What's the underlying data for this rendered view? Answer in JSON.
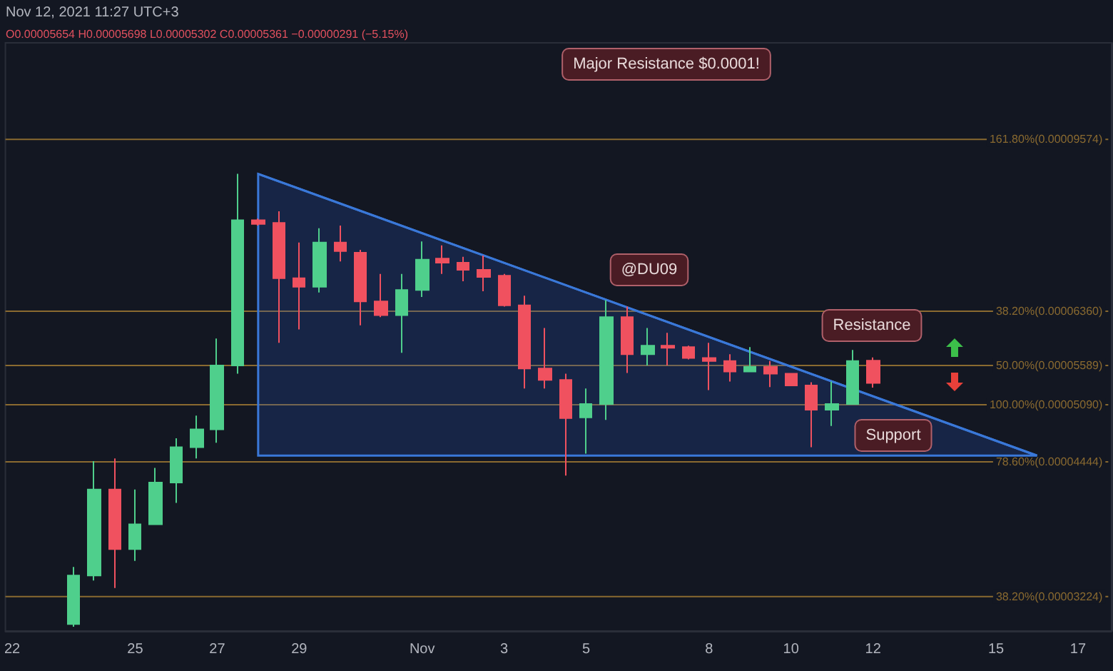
{
  "chart_data": {
    "type": "candlestick",
    "x": [
      "2021-10-23T12:00",
      "2021-10-24",
      "2021-10-24T12:00",
      "2021-10-25",
      "2021-10-25T12:00",
      "2021-10-26",
      "2021-10-26T12:00",
      "2021-10-27",
      "2021-10-27T12:00",
      "2021-10-28",
      "2021-10-28T12:00",
      "2021-10-29",
      "2021-10-29T12:00",
      "2021-10-30",
      "2021-10-30T12:00",
      "2021-10-31",
      "2021-10-31T12:00",
      "2021-11-01",
      "2021-11-01T12:00",
      "2021-11-02",
      "2021-11-02T12:00",
      "2021-11-03",
      "2021-11-03T12:00",
      "2021-11-04",
      "2021-11-04T12:00",
      "2021-11-05",
      "2021-11-05T12:00",
      "2021-11-06",
      "2021-11-06T12:00",
      "2021-11-07",
      "2021-11-07T12:00",
      "2021-11-08",
      "2021-11-08T12:00",
      "2021-11-09",
      "2021-11-09T12:00",
      "2021-11-10",
      "2021-11-10T12:00",
      "2021-11-11",
      "2021-11-11T12:00",
      "2021-11-12"
    ],
    "ohlc": [
      [
        3.02e-05,
        3.46e-05,
        3e-05,
        3.39e-05
      ],
      [
        3.39e-05,
        4.45e-05,
        3.35e-05,
        4.16e-05
      ],
      [
        4.16e-05,
        4.48e-05,
        3.29e-05,
        3.61e-05
      ],
      [
        3.61e-05,
        4.16e-05,
        3.51e-05,
        3.83e-05
      ],
      [
        3.83e-05,
        4.38e-05,
        3.83e-05,
        4.23e-05
      ],
      [
        4.23e-05,
        4.7e-05,
        4.03e-05,
        4.6e-05
      ],
      [
        4.6e-05,
        4.96e-05,
        4.48e-05,
        4.8e-05
      ],
      [
        4.8e-05,
        5.96e-05,
        4.65e-05,
        5.59e-05
      ],
      [
        5.59e-05,
        8.82e-05,
        5.48e-05,
        7.9e-05
      ],
      [
        7.9e-05,
        7.93e-05,
        7.8e-05,
        7.83e-05
      ],
      [
        7.85e-05,
        8.07e-05,
        5.9e-05,
        6.88e-05
      ],
      [
        6.88e-05,
        7.49e-05,
        6.09e-05,
        6.74e-05
      ],
      [
        6.74e-05,
        7.75e-05,
        6.65e-05,
        7.49e-05
      ],
      [
        7.49e-05,
        7.8e-05,
        7.16e-05,
        7.34e-05
      ],
      [
        7.31e-05,
        7.36e-05,
        6.15e-05,
        6.51e-05
      ],
      [
        6.51e-05,
        6.95e-05,
        6.27e-05,
        6.3e-05
      ],
      [
        6.3e-05,
        6.95e-05,
        5.76e-05,
        6.69e-05
      ],
      [
        6.69e-05,
        7.51e-05,
        6.58e-05,
        7.19e-05
      ],
      [
        7.21e-05,
        7.44e-05,
        6.95e-05,
        7.14e-05
      ],
      [
        7.14e-05,
        7.24e-05,
        6.83e-05,
        7.02e-05
      ],
      [
        7.02e-05,
        7.26e-05,
        6.67e-05,
        6.9e-05
      ],
      [
        6.92e-05,
        6.95e-05,
        6.43e-05,
        6.45e-05
      ],
      [
        6.45e-05,
        6.6e-05,
        5.29e-05,
        5.55e-05
      ],
      [
        5.55e-05,
        6.11e-05,
        5.29e-05,
        5.4e-05
      ],
      [
        5.4e-05,
        5.48e-05,
        4.3e-05,
        4.93e-05
      ],
      [
        4.94e-05,
        5.29e-05,
        4.53e-05,
        5.1e-05
      ],
      [
        5.1e-05,
        6.53e-05,
        4.91e-05,
        6.27e-05
      ],
      [
        6.27e-05,
        6.43e-05,
        5.49e-05,
        5.74e-05
      ],
      [
        5.74e-05,
        6.11e-05,
        5.59e-05,
        5.86e-05
      ],
      [
        5.86e-05,
        6.04e-05,
        5.59e-05,
        5.83e-05
      ],
      [
        5.84e-05,
        5.86e-05,
        5.67e-05,
        5.69e-05
      ],
      [
        5.69e-05,
        5.9e-05,
        5.27e-05,
        5.65e-05
      ],
      [
        5.65e-05,
        5.74e-05,
        5.38e-05,
        5.51e-05
      ],
      [
        5.51e-05,
        5.84e-05,
        5.51e-05,
        5.57e-05
      ],
      [
        5.57e-05,
        5.65e-05,
        5.31e-05,
        5.48e-05
      ],
      [
        5.48e-05,
        5.49e-05,
        5.33e-05,
        5.33e-05
      ],
      [
        5.33e-05,
        5.37e-05,
        4.6e-05,
        5.03e-05
      ],
      [
        5.03e-05,
        5.38e-05,
        4.84e-05,
        5.1e-05
      ],
      [
        5.1e-05,
        5.8e-05,
        5.1e-05,
        5.65e-05
      ],
      [
        5.654e-05,
        5.698e-05,
        5.302e-05,
        5.361e-05
      ]
    ],
    "colors": [
      "#4fcf8c",
      "#4fcf8c",
      "#f0515f",
      "#4fcf8c",
      "#4fcf8c",
      "#4fcf8c",
      "#4fcf8c",
      "#4fcf8c",
      "#4fcf8c",
      "#f0515f",
      "#f0515f",
      "#f0515f",
      "#4fcf8c",
      "#f0515f",
      "#f0515f",
      "#f0515f",
      "#4fcf8c",
      "#4fcf8c",
      "#f0515f",
      "#f0515f",
      "#f0515f",
      "#f0515f",
      "#f0515f",
      "#f0515f",
      "#f0515f",
      "#4fcf8c",
      "#4fcf8c",
      "#f0515f",
      "#4fcf8c",
      "#f0515f",
      "#f0515f",
      "#f0515f",
      "#f0515f",
      "#4fcf8c",
      "#f0515f",
      "#f0515f",
      "#f0515f",
      "#4fcf8c",
      "#4fcf8c",
      "#f0515f"
    ],
    "series": [
      {
        "type": "line",
        "color": "#3a78d8",
        "x": [
          "2021-10-28",
          "2021-11-16"
        ],
        "values": [
          8.82e-05,
          4.51e-05
        ],
        "lower": [
          4.51e-05,
          4.51e-05
        ],
        "upper": [
          8.82e-05,
          4.51e-05
        ]
      }
    ],
    "marker": "none",
    "log": true,
    "ylim": [
      2.97e-05,
      0.0001205
    ],
    "xlim": [
      "2021-10-21T20:00",
      "2021-11-17T19:40"
    ],
    "xticks": [
      {
        "value": "2021-10-22",
        "label": "22"
      },
      {
        "value": "2021-10-25",
        "label": "25"
      },
      {
        "value": "2021-10-27",
        "label": "27"
      },
      {
        "value": "2021-10-29",
        "label": "29"
      },
      {
        "value": "2021-11-01",
        "label": "Nov"
      },
      {
        "value": "2021-11-03",
        "label": "3"
      },
      {
        "value": "2021-11-05",
        "label": "5"
      },
      {
        "value": "2021-11-08",
        "label": "8"
      },
      {
        "value": "2021-11-10",
        "label": "10"
      },
      {
        "value": "2021-11-12",
        "label": "12"
      },
      {
        "value": "2021-11-15",
        "label": "15"
      },
      {
        "value": "2021-11-17",
        "label": "17"
      }
    ],
    "tick_labels": "x",
    "grid": false,
    "ref_lines": [
      {
        "axis": "y",
        "value": 9.574e-05,
        "label": "161.80%(0.00009574)",
        "color": "#8a6a30"
      },
      {
        "axis": "y",
        "value": 6.36e-05,
        "label": "38.20%(0.00006360)",
        "color": "#8a6a30"
      },
      {
        "axis": "y",
        "value": 5.589e-05,
        "label": "50.00%(0.00005589)",
        "color": "#8a6a30"
      },
      {
        "axis": "y",
        "value": 5.09e-05,
        "label": "100.00%(0.00005090)",
        "color": "#8a6a30"
      },
      {
        "axis": "y",
        "value": 4.444e-05,
        "label": "78.60%(0.00004444)",
        "color": "#8a6a30"
      },
      {
        "axis": "y",
        "value": 3.224e-05,
        "label": "38.20%(0.00003224)",
        "color": "#8a6a30"
      }
    ],
    "annotations": [
      "Nov 12, 2021 11:27 UTC+3",
      "O0.00005654 H0.00005698 L0.00005302 C0.00005361 −0.00000291 (−5.15%)",
      "Major Resistance $0.0001!",
      "@DU09",
      "Resistance",
      "Support"
    ]
  }
}
